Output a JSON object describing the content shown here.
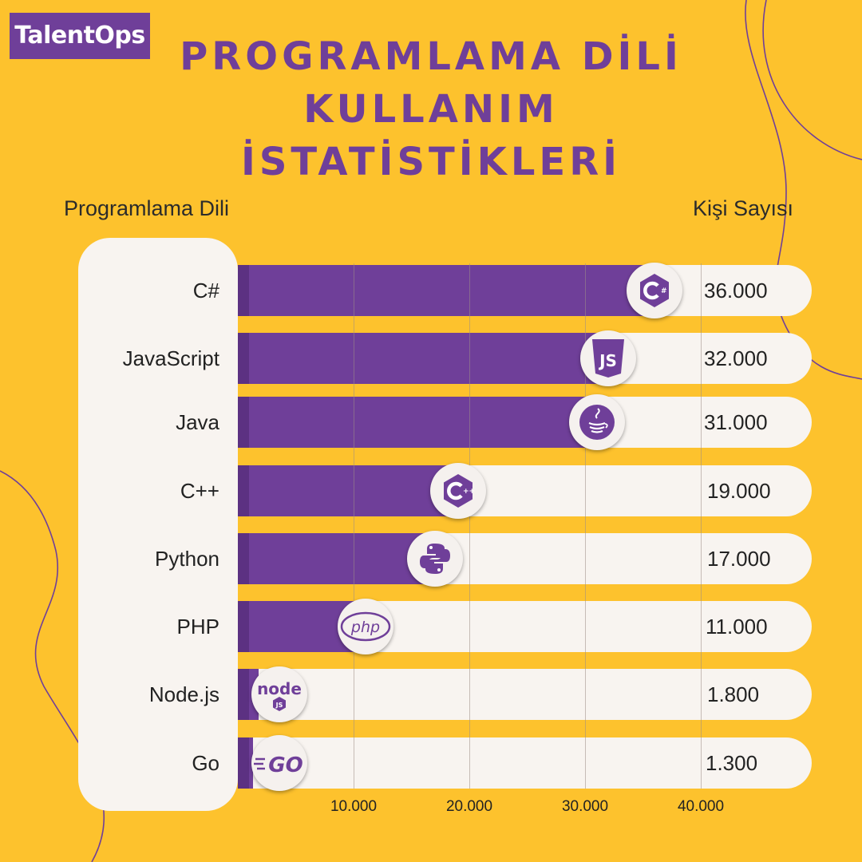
{
  "brand": {
    "logo_text": "TalentOps"
  },
  "header": {
    "title_lines": [
      "PROGRAMLAMA DİLİ",
      "KULLANIM",
      "İSTATİSTİKLERİ"
    ]
  },
  "columns": {
    "left": "Programlama Dili",
    "right": "Kişi Sayısı"
  },
  "colors": {
    "background": "#FDC22D",
    "bar": "#6F3F99",
    "track": "#F8F4F0"
  },
  "chart_data": {
    "type": "bar",
    "orientation": "horizontal",
    "title": "PROGRAMLAMA DİLİ KULLANIM İSTATİSTİKLERİ",
    "xlabel": "Kişi Sayısı",
    "ylabel": "Programlama Dili",
    "categories": [
      "C#",
      "JavaScript",
      "Java",
      "C++",
      "Python",
      "PHP",
      "Node.js",
      "Go"
    ],
    "values": [
      36000,
      32000,
      31000,
      19000,
      17000,
      11000,
      1800,
      1300
    ],
    "value_labels": [
      "36.000",
      "32.000",
      "31.000",
      "19.000",
      "17.000",
      "11.000",
      "1.800",
      "1.300"
    ],
    "icons": [
      "csharp-icon",
      "javascript-icon",
      "java-icon",
      "cplusplus-icon",
      "python-icon",
      "php-icon",
      "nodejs-icon",
      "go-icon"
    ],
    "xlim": [
      0,
      40000
    ],
    "xticks": [
      10000,
      20000,
      30000,
      40000
    ],
    "xtick_labels": [
      "10.000",
      "20.000",
      "30.000",
      "40.000"
    ],
    "grid": true
  }
}
